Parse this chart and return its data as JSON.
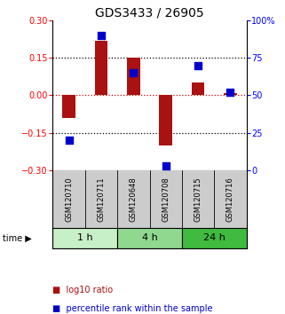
{
  "title": "GDS3433 / 26905",
  "samples": [
    "GSM120710",
    "GSM120711",
    "GSM120648",
    "GSM120708",
    "GSM120715",
    "GSM120716"
  ],
  "log10_ratio": [
    -0.09,
    0.22,
    0.15,
    -0.2,
    0.05,
    0.01
  ],
  "percentile_rank": [
    20,
    90,
    65,
    3,
    70,
    52
  ],
  "ylim_left": [
    -0.3,
    0.3
  ],
  "ylim_right": [
    0,
    100
  ],
  "yticks_left": [
    -0.3,
    -0.15,
    0,
    0.15,
    0.3
  ],
  "yticks_right": [
    0,
    25,
    50,
    75,
    100
  ],
  "time_groups": [
    {
      "label": "1 h",
      "start": 0,
      "end": 2,
      "color": "#c8f0c8"
    },
    {
      "label": "4 h",
      "start": 2,
      "end": 4,
      "color": "#90d890"
    },
    {
      "label": "24 h",
      "start": 4,
      "end": 6,
      "color": "#40bb40"
    }
  ],
  "bar_color": "#aa1111",
  "dot_color": "#0000cc",
  "bar_width": 0.4,
  "dot_size": 28,
  "hline_zero_color": "#cc0000",
  "hline_dotted_color": "#000000",
  "sample_box_color": "#cccccc",
  "background_color": "#ffffff",
  "title_fontsize": 10,
  "tick_fontsize": 7,
  "sample_fontsize": 6,
  "time_fontsize": 8,
  "legend_fontsize": 7
}
